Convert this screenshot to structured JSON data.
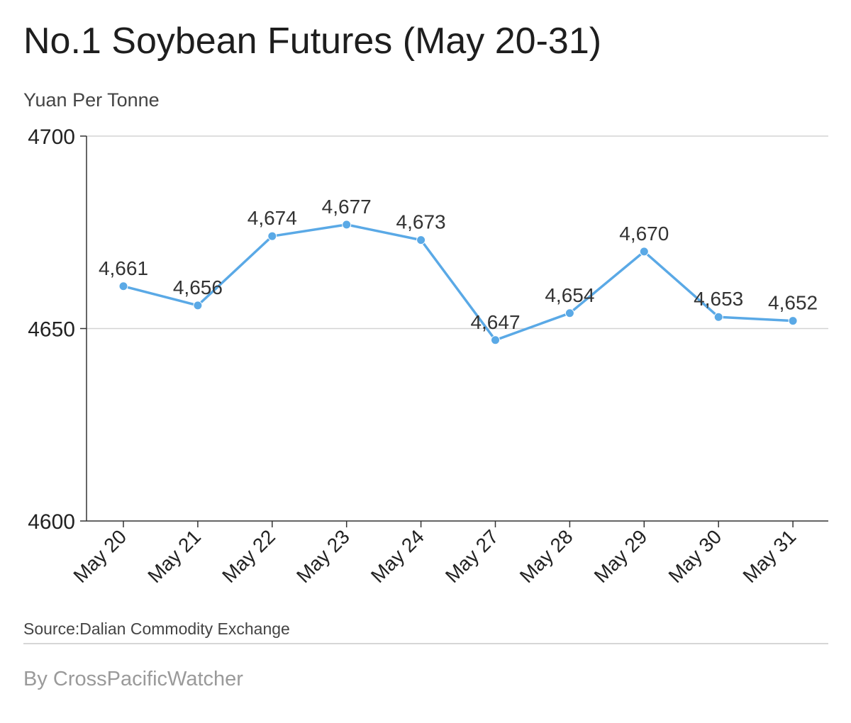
{
  "chart_data": {
    "type": "line",
    "title": "No.1 Soybean Futures (May 20-31)",
    "subtitle": "Yuan Per Tonne",
    "categories": [
      "May 20",
      "May 21",
      "May 22",
      "May 23",
      "May 24",
      "May 27",
      "May 28",
      "May 29",
      "May 30",
      "May 31"
    ],
    "series": [
      {
        "values": [
          4661,
          4656,
          4674,
          4677,
          4673,
          4647,
          4654,
          4670,
          4653,
          4652
        ]
      }
    ],
    "data_labels": [
      "4,661",
      "4,656",
      "4,674",
      "4,677",
      "4,673",
      "4,647",
      "4,654",
      "4,670",
      "4,653",
      "4,652"
    ],
    "ylim": [
      4600,
      4700
    ],
    "yticks": [
      "4600",
      "4650",
      "4700"
    ],
    "grid": true,
    "line_color": "#5aa9e6",
    "source": "Source:Dalian Commodity Exchange",
    "byline": "By CrossPacificWatcher"
  }
}
